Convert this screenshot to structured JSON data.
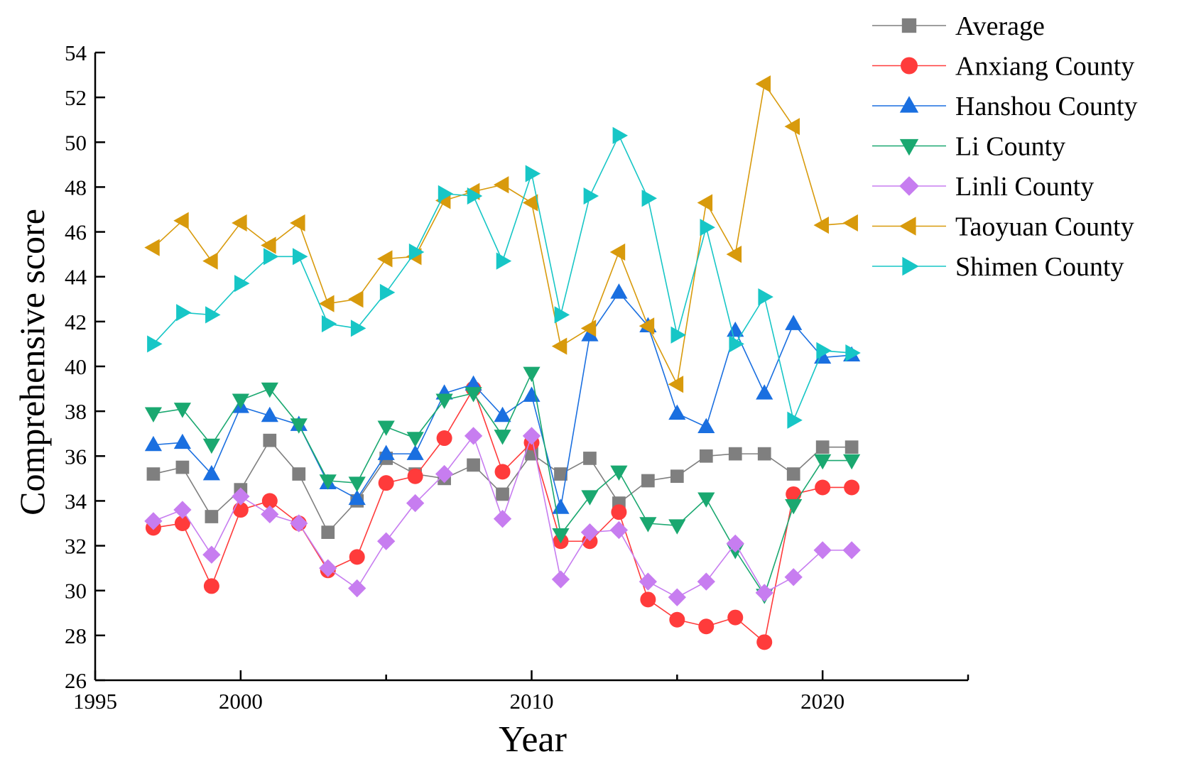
{
  "chart_data": {
    "type": "line",
    "title": "",
    "xlabel": "Year",
    "ylabel": "Comprehensive score",
    "xlim": [
      1995,
      2025
    ],
    "ylim": [
      26,
      54
    ],
    "xticks": [
      1995,
      2000,
      2010,
      2020
    ],
    "xtick_labels": [
      "1995",
      "2000",
      "2010",
      "2020"
    ],
    "yticks": [
      26,
      28,
      30,
      32,
      34,
      36,
      38,
      40,
      42,
      44,
      46,
      48,
      50,
      52,
      54
    ],
    "ytick_labels": [
      "26",
      "28",
      "30",
      "32",
      "34",
      "36",
      "38",
      "40",
      "42",
      "44",
      "46",
      "48",
      "50",
      "52",
      "54"
    ],
    "legend_position": "top-right",
    "x": [
      1997,
      1998,
      1999,
      2000,
      2001,
      2002,
      2003,
      2004,
      2005,
      2006,
      2007,
      2008,
      2009,
      2010,
      2011,
      2012,
      2013,
      2014,
      2015,
      2016,
      2017,
      2018,
      2019,
      2020,
      2021
    ],
    "series": [
      {
        "name": "Average",
        "color": "#7f7f7f",
        "marker": "square",
        "values": [
          35.2,
          35.5,
          33.3,
          34.5,
          36.7,
          35.2,
          32.6,
          34.0,
          35.9,
          35.2,
          35.0,
          35.6,
          34.3,
          36.1,
          35.2,
          35.9,
          33.9,
          34.9,
          35.1,
          36.0,
          36.1,
          36.1,
          35.2,
          36.4,
          36.4
        ]
      },
      {
        "name": "Anxiang County",
        "color": "#ff3b3b",
        "marker": "circle",
        "values": [
          32.8,
          33.0,
          30.2,
          33.6,
          34.0,
          33.0,
          30.9,
          31.5,
          34.8,
          35.1,
          36.8,
          39.0,
          35.3,
          36.6,
          32.2,
          32.2,
          33.5,
          29.6,
          28.7,
          28.4,
          28.8,
          27.7,
          34.3,
          34.6,
          34.6
        ]
      },
      {
        "name": "Hanshou County",
        "color": "#1a6fe0",
        "marker": "triangle-up",
        "values": [
          36.5,
          36.6,
          35.2,
          38.2,
          37.8,
          37.4,
          34.8,
          34.1,
          36.1,
          36.1,
          38.8,
          39.2,
          37.8,
          38.7,
          33.7,
          41.4,
          43.3,
          41.8,
          37.9,
          37.3,
          41.6,
          38.8,
          41.9,
          40.4,
          40.5
        ]
      },
      {
        "name": "Li County",
        "color": "#1aa870",
        "marker": "triangle-down",
        "values": [
          37.9,
          38.1,
          36.5,
          38.5,
          39.0,
          37.4,
          34.9,
          34.8,
          37.3,
          36.8,
          38.5,
          38.8,
          36.9,
          39.7,
          32.5,
          34.2,
          35.3,
          33.0,
          32.9,
          34.1,
          31.8,
          29.8,
          33.8,
          35.8,
          35.8
        ]
      },
      {
        "name": "Linli County",
        "color": "#c77df0",
        "marker": "diamond",
        "values": [
          33.1,
          33.6,
          31.6,
          34.2,
          33.4,
          33.0,
          31.0,
          30.1,
          32.2,
          33.9,
          35.2,
          36.9,
          33.2,
          36.9,
          30.5,
          32.6,
          32.7,
          30.4,
          29.7,
          30.4,
          32.1,
          29.9,
          30.6,
          31.8,
          31.8
        ]
      },
      {
        "name": "Taoyuan County",
        "color": "#d89a0c",
        "marker": "triangle-left",
        "values": [
          45.3,
          46.5,
          44.7,
          46.4,
          45.4,
          46.4,
          42.8,
          43.0,
          44.8,
          44.9,
          47.4,
          47.8,
          48.1,
          47.3,
          40.9,
          41.7,
          45.1,
          41.8,
          39.2,
          47.3,
          45.0,
          52.6,
          50.7,
          46.3,
          46.4
        ]
      },
      {
        "name": "Shimen County",
        "color": "#17c6c6",
        "marker": "triangle-right",
        "values": [
          41.0,
          42.4,
          42.3,
          43.7,
          44.9,
          44.9,
          41.9,
          41.7,
          43.3,
          45.1,
          47.7,
          47.6,
          44.7,
          48.6,
          42.3,
          47.6,
          50.3,
          47.5,
          41.4,
          46.2,
          41.0,
          43.1,
          37.6,
          40.7,
          40.6
        ]
      }
    ]
  }
}
